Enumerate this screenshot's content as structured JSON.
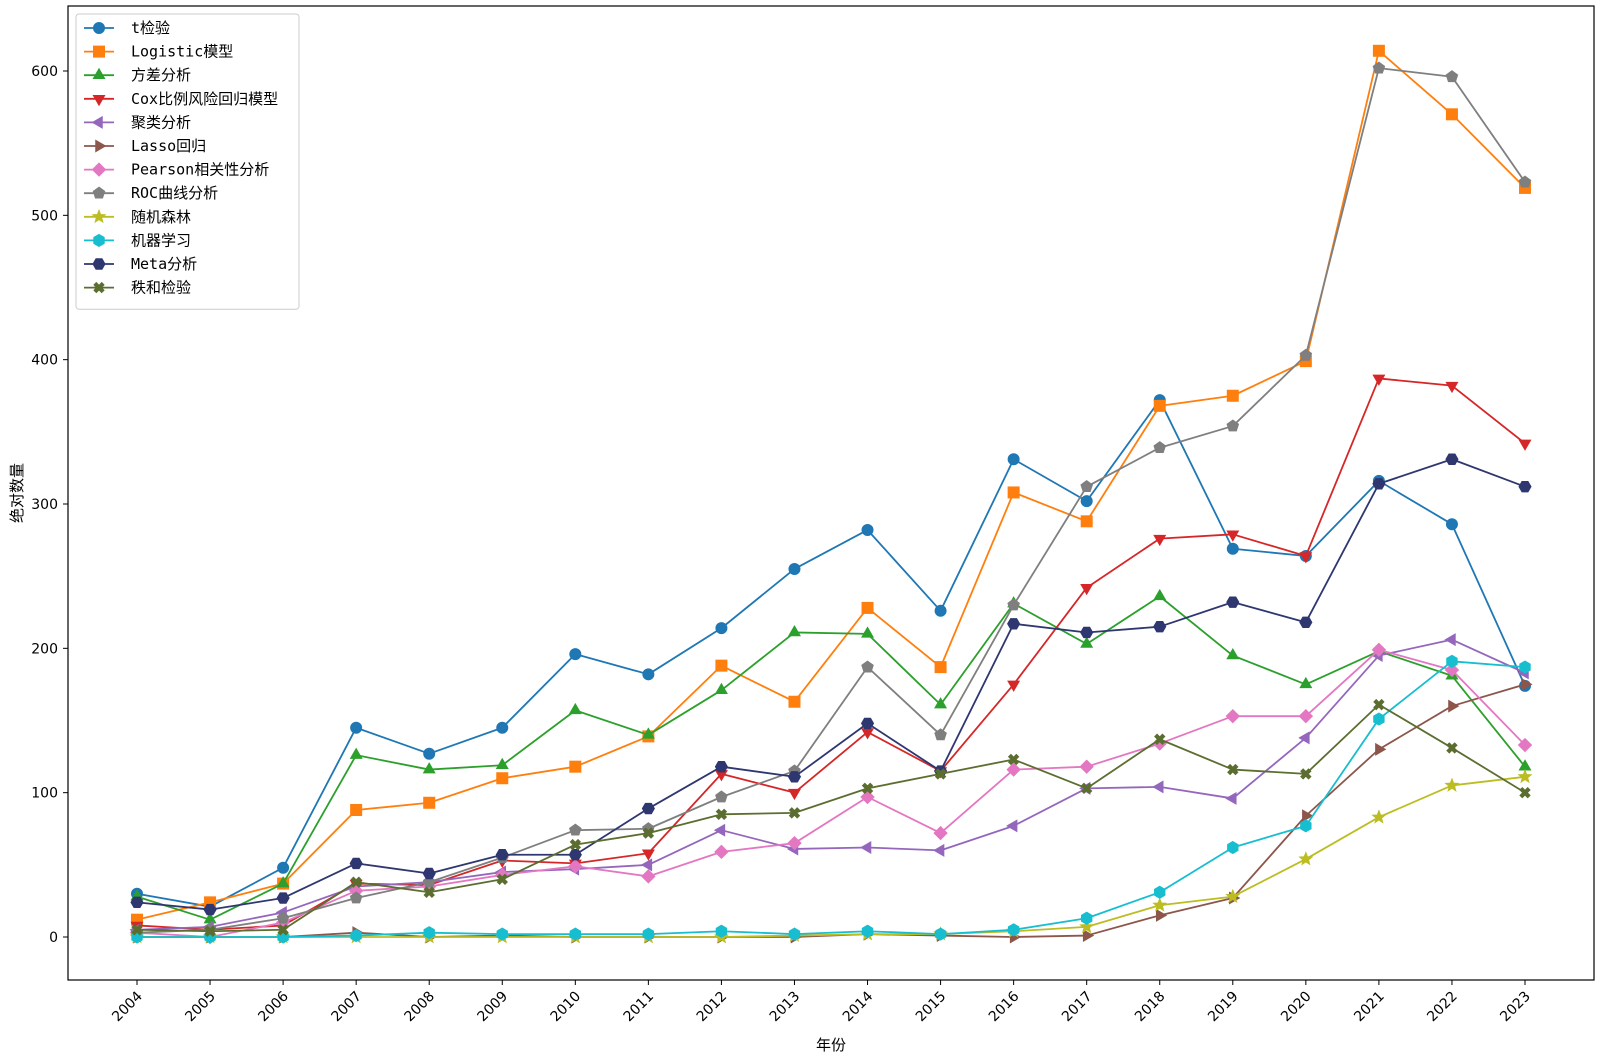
{
  "chart_data": {
    "type": "line",
    "title": "",
    "xlabel": "年份",
    "ylabel": "绝对数量",
    "ylim": [
      -30,
      640
    ],
    "yticks": [
      0,
      100,
      200,
      300,
      400,
      500,
      600
    ],
    "grid": false,
    "legend_position": "top-left",
    "x": [
      "2004",
      "2005",
      "2006",
      "2007",
      "2008",
      "2009",
      "2010",
      "2011",
      "2012",
      "2013",
      "2014",
      "2015",
      "2016",
      "2017",
      "2018",
      "2019",
      "2020",
      "2021",
      "2022",
      "2023"
    ],
    "series": [
      {
        "name": "t检验",
        "color": "#1f77b4",
        "marker": "circle",
        "values": [
          30,
          21,
          48,
          145,
          127,
          145,
          196,
          182,
          214,
          255,
          282,
          226,
          331,
          302,
          372,
          269,
          264,
          316,
          286,
          174
        ]
      },
      {
        "name": "Logistic模型",
        "color": "#ff7f0e",
        "marker": "square",
        "values": [
          12,
          24,
          37,
          88,
          93,
          110,
          118,
          139,
          188,
          163,
          228,
          187,
          308,
          288,
          368,
          375,
          399,
          614,
          570,
          519
        ]
      },
      {
        "name": "方差分析",
        "color": "#2ca02c",
        "marker": "triangle-up",
        "values": [
          28,
          12,
          37,
          126,
          116,
          119,
          157,
          140,
          171,
          211,
          210,
          161,
          231,
          203,
          236,
          195,
          175,
          198,
          181,
          118
        ]
      },
      {
        "name": "Cox比例风险回归模型",
        "color": "#d62728",
        "marker": "triangle-down",
        "values": [
          8,
          5,
          8,
          37,
          36,
          53,
          51,
          58,
          113,
          100,
          142,
          115,
          175,
          242,
          276,
          279,
          264,
          387,
          382,
          342
        ]
      },
      {
        "name": "聚类分析",
        "color": "#9467bd",
        "marker": "triangle-left",
        "values": [
          5,
          7,
          17,
          35,
          38,
          45,
          47,
          50,
          74,
          61,
          62,
          60,
          77,
          103,
          104,
          96,
          138,
          195,
          206,
          183
        ]
      },
      {
        "name": "Lasso回归",
        "color": "#8c564b",
        "marker": "triangle-right",
        "values": [
          0,
          0,
          0,
          3,
          0,
          1,
          0,
          0,
          0,
          0,
          2,
          1,
          0,
          1,
          15,
          27,
          84,
          130,
          160,
          175
        ]
      },
      {
        "name": "Pearson相关性分析",
        "color": "#e377c2",
        "marker": "diamond",
        "values": [
          3,
          0,
          10,
          32,
          35,
          43,
          49,
          42,
          59,
          65,
          97,
          72,
          116,
          118,
          134,
          153,
          153,
          199,
          185,
          133
        ]
      },
      {
        "name": "ROC曲线分析",
        "color": "#7f7f7f",
        "marker": "pentagon",
        "values": [
          3,
          5,
          13,
          27,
          38,
          55,
          74,
          75,
          97,
          115,
          187,
          140,
          230,
          312,
          339,
          354,
          403,
          602,
          596,
          523
        ]
      },
      {
        "name": "随机森林",
        "color": "#bcbd22",
        "marker": "star",
        "values": [
          0,
          0,
          0,
          0,
          0,
          0,
          0,
          0,
          0,
          1,
          2,
          2,
          4,
          7,
          22,
          28,
          54,
          83,
          105,
          111
        ]
      },
      {
        "name": "机器学习",
        "color": "#17becf",
        "marker": "hexagon",
        "values": [
          0,
          0,
          0,
          1,
          3,
          2,
          2,
          2,
          4,
          2,
          4,
          2,
          5,
          13,
          31,
          62,
          77,
          151,
          191,
          187
        ]
      },
      {
        "name": "Meta分析",
        "color": "#2e3770",
        "marker": "hexagon2",
        "values": [
          24,
          19,
          27,
          51,
          44,
          57,
          57,
          89,
          118,
          111,
          148,
          115,
          217,
          211,
          215,
          232,
          218,
          314,
          331,
          312
        ]
      },
      {
        "name": "秩和检验",
        "color": "#5b6e30",
        "marker": "x",
        "values": [
          5,
          4,
          5,
          38,
          31,
          40,
          64,
          72,
          85,
          86,
          103,
          113,
          123,
          103,
          137,
          116,
          113,
          161,
          131,
          100
        ]
      }
    ]
  }
}
